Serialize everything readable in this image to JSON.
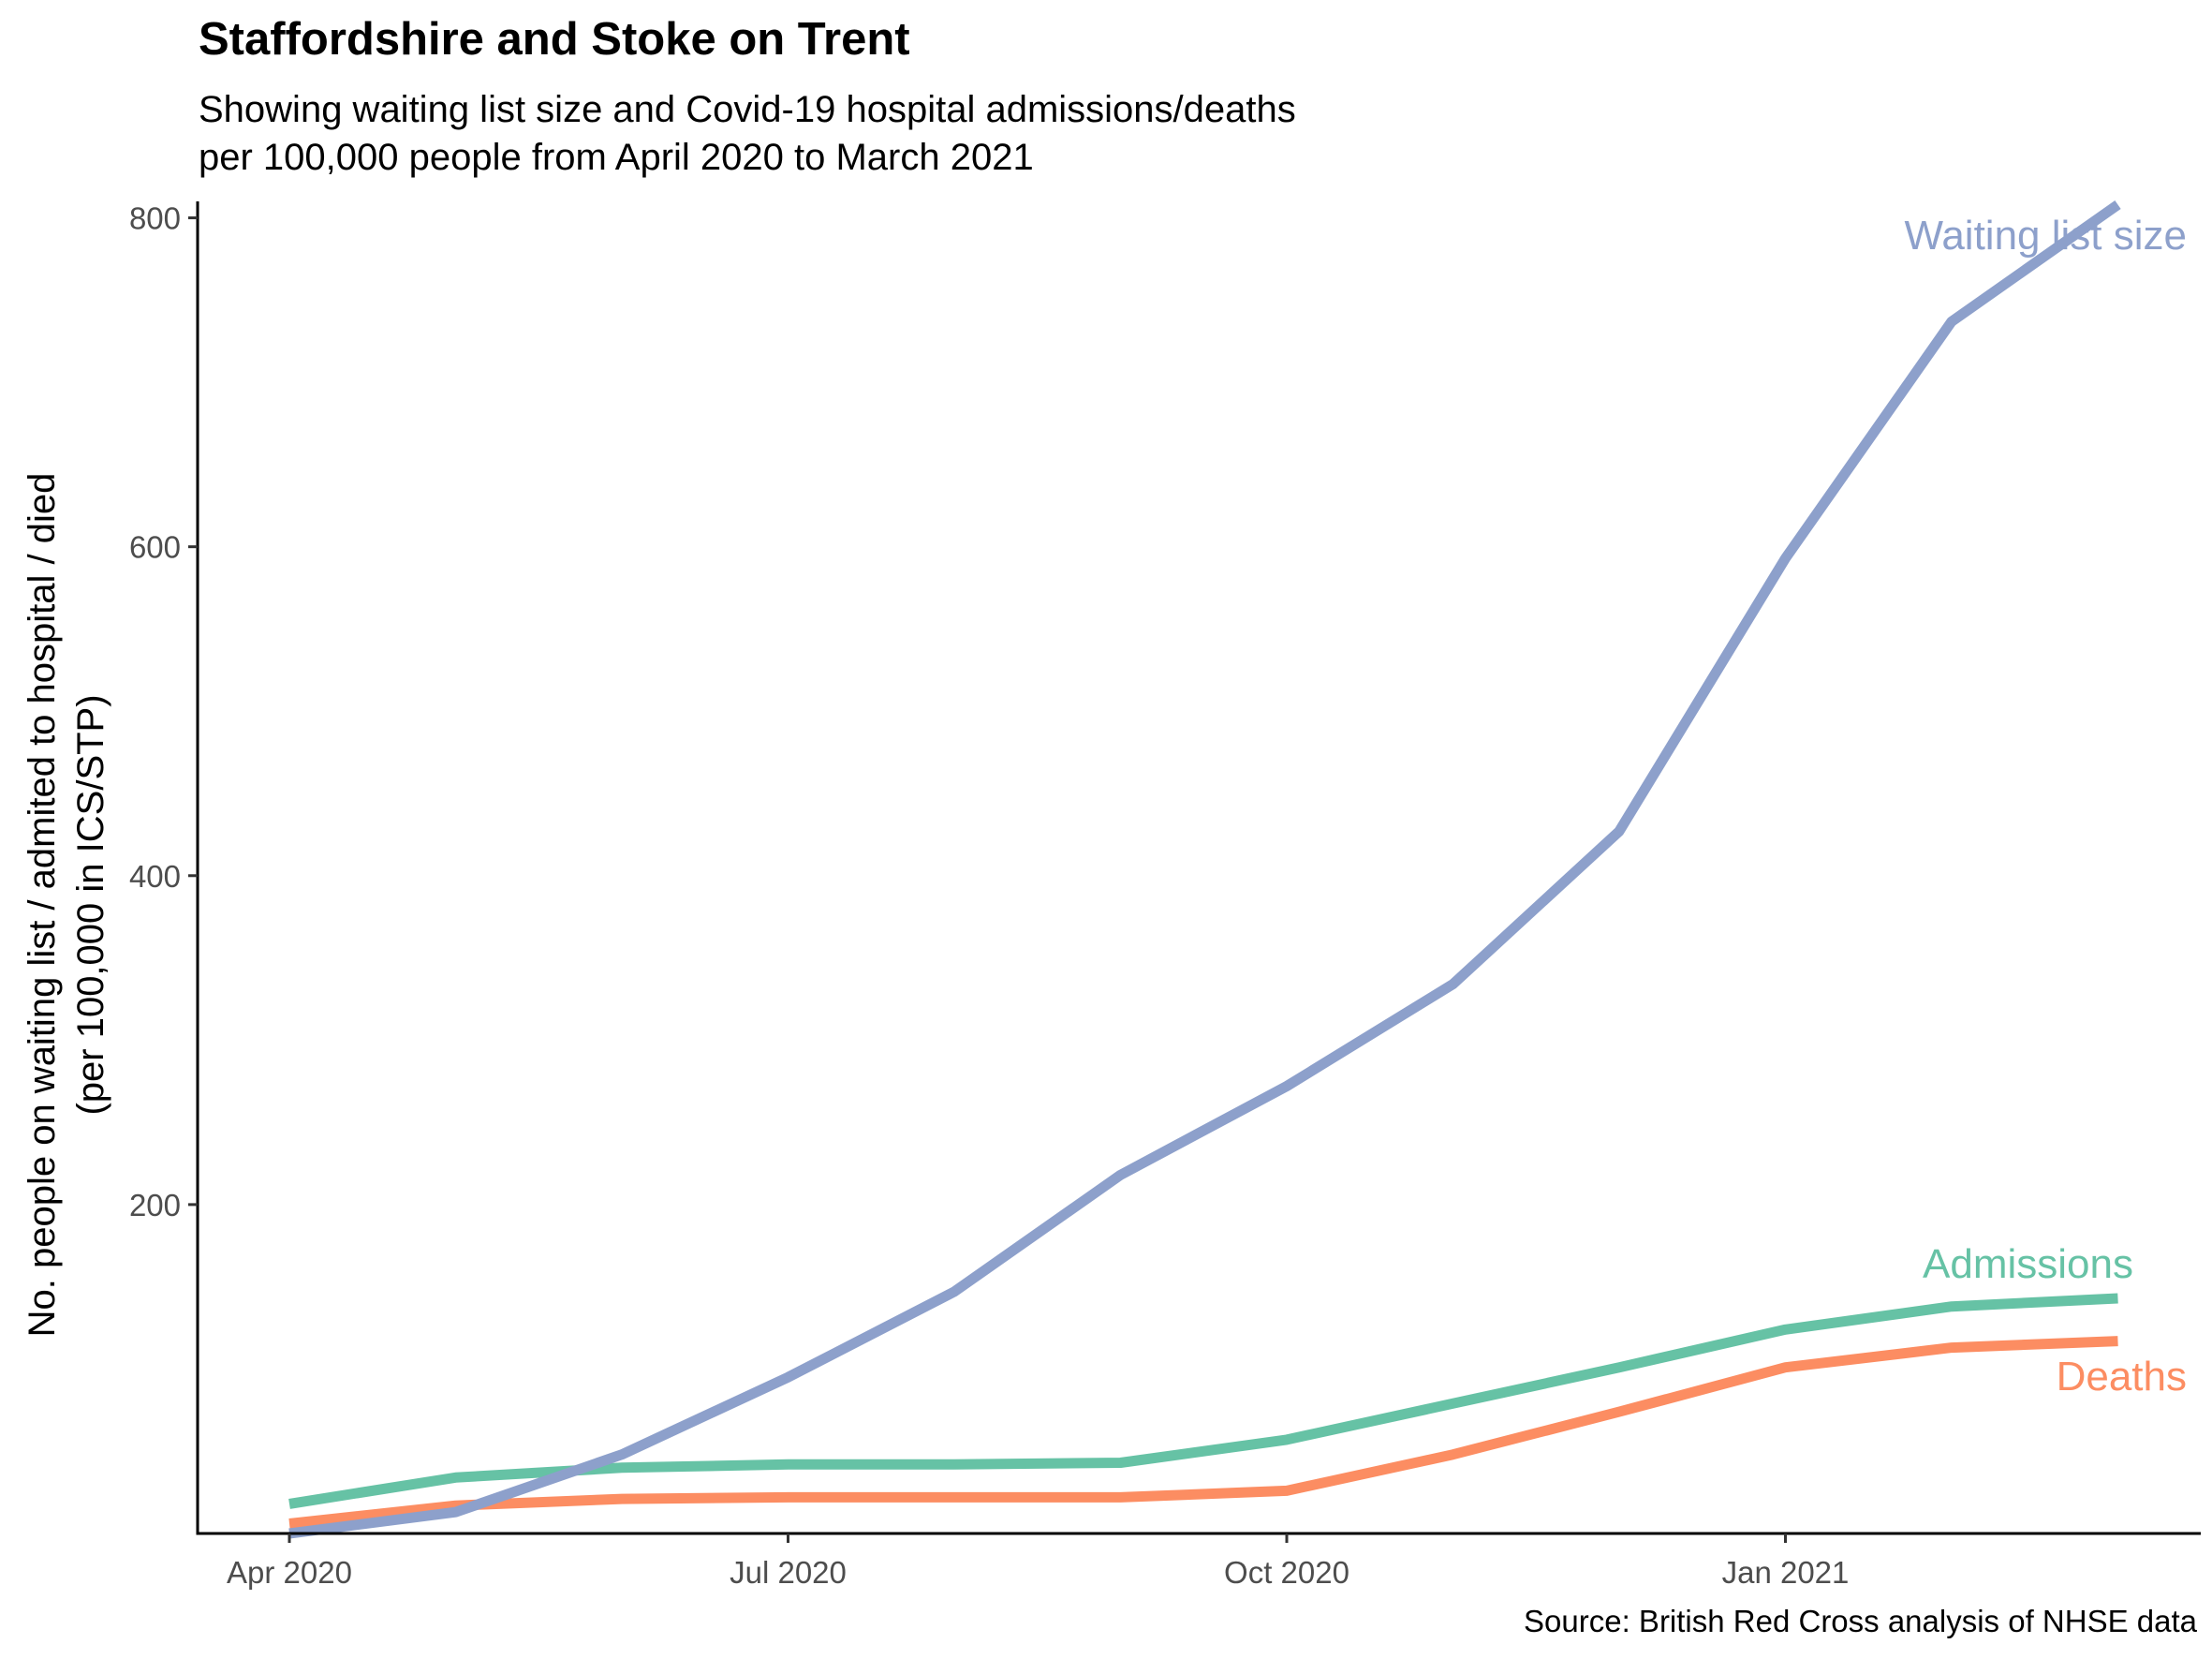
{
  "chart_data": {
    "type": "line",
    "title": "Staffordshire and Stoke on Trent",
    "subtitle_lines": [
      "Showing waiting list size and Covid-19 hospital admissions/deaths",
      "per 100,000 people from April 2020 to March 2021"
    ],
    "caption": "Source: British Red Cross analysis of NHSE data",
    "xlabel": "",
    "ylabel_lines": [
      "No. people on waiting list / admited to hospital / died",
      "(per 100,000 in ICS/STP)"
    ],
    "x": [
      "2020-04-01",
      "2020-05-01",
      "2020-06-01",
      "2020-07-01",
      "2020-08-01",
      "2020-09-01",
      "2020-10-01",
      "2020-11-01",
      "2020-12-01",
      "2021-01-01",
      "2021-02-01",
      "2021-03-01"
    ],
    "x_ticks": [
      {
        "date": "2020-04-01",
        "label": "Apr 2020"
      },
      {
        "date": "2020-07-01",
        "label": "Jul 2020"
      },
      {
        "date": "2020-10-01",
        "label": "Oct 2020"
      },
      {
        "date": "2021-01-01",
        "label": "Jan 2021"
      }
    ],
    "y_ticks": [
      200,
      400,
      600,
      800
    ],
    "ylim": [
      0,
      808
    ],
    "grid": false,
    "legend": "direct labels at line ends",
    "series": [
      {
        "name": "Waiting list size",
        "color": "#8DA0CB",
        "values": [
          0,
          13,
          48,
          95,
          147,
          218,
          272,
          334,
          427,
          593,
          737,
          808
        ]
      },
      {
        "name": "Admissions",
        "color": "#66C2A5",
        "values": [
          18,
          34,
          40,
          42,
          42,
          43,
          57,
          79,
          101,
          124,
          138,
          143
        ]
      },
      {
        "name": "Deaths",
        "color": "#FC8D62",
        "values": [
          6,
          17,
          21,
          22,
          22,
          22,
          26,
          48,
          74,
          101,
          113,
          117
        ]
      }
    ]
  }
}
